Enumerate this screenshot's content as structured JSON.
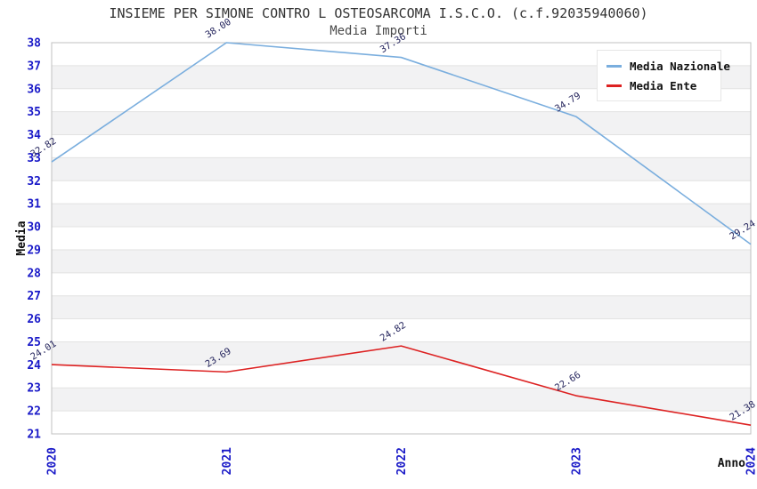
{
  "page": {
    "title": "INSIEME PER SIMONE CONTRO L OSTEOSARCOMA I.S.C.O. (c.f.92035940060)",
    "subtitle": "Media Importi"
  },
  "chart_data": {
    "type": "line",
    "title": "INSIEME PER SIMONE CONTRO L OSTEOSARCOMA I.S.C.O. (c.f.92035940060)",
    "subtitle": "Media Importi",
    "xlabel": "Anno",
    "ylabel": "Media",
    "categories": [
      "2020",
      "2021",
      "2022",
      "2023",
      "2024"
    ],
    "ylim": [
      21,
      38
    ],
    "y_tick_step": 1,
    "grid": "horizontal-bands",
    "legend_position": "top-right",
    "series": [
      {
        "name": "Media Nazionale",
        "color": "#7aaede",
        "values": [
          32.82,
          38.0,
          37.36,
          34.79,
          29.24
        ],
        "labels": [
          "32.82",
          "38.00",
          "37.36",
          "34.79",
          "29.24"
        ]
      },
      {
        "name": "Media Ente",
        "color": "#dd2222",
        "values": [
          24.01,
          23.69,
          24.82,
          22.66,
          21.38
        ],
        "labels": [
          "24.01",
          "23.69",
          "24.82",
          "22.66",
          "21.38"
        ]
      }
    ],
    "colors": {
      "tick_label": "#1a1ac8",
      "axis_title": "#111111",
      "data_label": "#26265e",
      "band_gray": "#f2f2f3",
      "gridline": "#e2e2e2",
      "plot_border": "#c0c0c0",
      "plot_bg": "#ffffff"
    }
  }
}
